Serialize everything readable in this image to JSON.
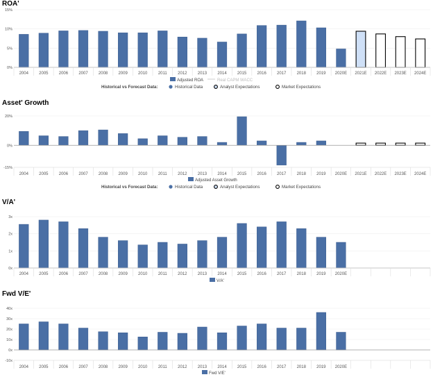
{
  "colors": {
    "bar": "#4a6fa5",
    "bar_stroke": "#3d5f91",
    "analyst_fill": "#cfe0f7",
    "axis": "#999999",
    "grid": "#eeeeee",
    "wacc": "#cccccc"
  },
  "legend_text": {
    "prefix": "Historical vs Forecast Data:",
    "historical": "Historical Data",
    "analyst": "Analyst Expectations",
    "market": "Market Expectations",
    "wacc": "Real CAPM WACC"
  },
  "chart_data": [
    {
      "id": "roa",
      "type": "bar",
      "title": "ROA'",
      "categories": [
        "2004",
        "2005",
        "2006",
        "2007",
        "2008",
        "2009",
        "2010",
        "2011",
        "2012",
        "2013",
        "2014",
        "2015",
        "2016",
        "2017",
        "2018",
        "2019",
        "2020E",
        "2021E",
        "2022E",
        "2023E",
        "2024E"
      ],
      "values": [
        8.6,
        8.9,
        9.5,
        9.6,
        9.4,
        9.0,
        9.0,
        9.5,
        7.9,
        7.6,
        6.6,
        8.7,
        10.9,
        11.0,
        12.1,
        10.3,
        4.8,
        9.4,
        8.7,
        8.0,
        7.4
      ],
      "kind": [
        "h",
        "h",
        "h",
        "h",
        "h",
        "h",
        "h",
        "h",
        "h",
        "h",
        "h",
        "h",
        "h",
        "h",
        "h",
        "h",
        "h",
        "a",
        "m",
        "m",
        "m"
      ],
      "yticks": [
        "0%",
        "5%",
        "10%",
        "15%"
      ],
      "ylim": [
        0,
        15
      ],
      "legend": [
        "Adjusted ROA",
        "Real CAPM WACC"
      ],
      "forecast_legend": true
    },
    {
      "id": "asset-growth",
      "type": "bar",
      "title": "Asset' Growth",
      "categories": [
        "2004",
        "2005",
        "2006",
        "2007",
        "2008",
        "2009",
        "2010",
        "2011",
        "2012",
        "2013",
        "2014",
        "2015",
        "2016",
        "2017",
        "2018",
        "2019",
        "2020E",
        "2021E",
        "2022E",
        "2023E",
        "2024E"
      ],
      "values": [
        9.5,
        6.5,
        6.0,
        10.0,
        10.5,
        8.0,
        4.5,
        6.5,
        5.5,
        6.0,
        2.0,
        19.5,
        3.0,
        -13.5,
        2.0,
        3.0,
        null,
        1.5,
        1.5,
        1.5,
        1.5
      ],
      "kind": [
        "h",
        "h",
        "h",
        "h",
        "h",
        "h",
        "h",
        "h",
        "h",
        "h",
        "h",
        "h",
        "h",
        "h",
        "h",
        "h",
        "h",
        "m",
        "m",
        "m",
        "m"
      ],
      "yticks": [
        "-15%",
        "0%",
        "20%"
      ],
      "ylim": [
        -15,
        20
      ],
      "legend": [
        "Adjusted Asset Growth"
      ],
      "forecast_legend": true
    },
    {
      "id": "va",
      "type": "bar",
      "title": "V/A'",
      "categories": [
        "2004",
        "2005",
        "2006",
        "2007",
        "2008",
        "2009",
        "2010",
        "2011",
        "2012",
        "2013",
        "2014",
        "2015",
        "2016",
        "2017",
        "2018",
        "2019",
        "2020E",
        "",
        "",
        "",
        ""
      ],
      "values": [
        2.55,
        2.8,
        2.7,
        2.3,
        1.8,
        1.6,
        1.35,
        1.5,
        1.4,
        1.6,
        1.8,
        2.6,
        2.4,
        2.7,
        2.3,
        1.8,
        1.5,
        null,
        null,
        null,
        null
      ],
      "kind": [
        "h",
        "h",
        "h",
        "h",
        "h",
        "h",
        "h",
        "h",
        "h",
        "h",
        "h",
        "h",
        "h",
        "h",
        "h",
        "h",
        "h",
        "h",
        "h",
        "h",
        "h"
      ],
      "yticks": [
        "0x",
        "1x",
        "2x",
        "3x"
      ],
      "ylim": [
        0,
        3
      ],
      "legend": [
        "V/A'"
      ],
      "forecast_legend": false
    },
    {
      "id": "fwd-ve",
      "type": "bar",
      "title": "Fwd V/E'",
      "categories": [
        "2004",
        "2005",
        "2006",
        "2007",
        "2008",
        "2009",
        "2010",
        "2011",
        "2012",
        "2013",
        "2014",
        "2015",
        "2016",
        "2017",
        "2018",
        "2019",
        "2020E",
        "",
        "",
        "",
        ""
      ],
      "values": [
        25,
        27,
        25,
        21,
        17.5,
        16.5,
        12.5,
        17,
        16,
        22,
        16.5,
        23,
        25,
        21,
        21,
        36,
        17,
        null,
        null,
        null,
        null
      ],
      "kind": [
        "h",
        "h",
        "h",
        "h",
        "h",
        "h",
        "h",
        "h",
        "h",
        "h",
        "h",
        "h",
        "h",
        "h",
        "h",
        "h",
        "h",
        "h",
        "h",
        "h",
        "h"
      ],
      "yticks": [
        "-10x",
        "0x",
        "10x",
        "20x",
        "30x",
        "40x"
      ],
      "ylim": [
        -10,
        40
      ],
      "legend": [
        "Fwd V/E'"
      ],
      "forecast_legend": false
    }
  ]
}
